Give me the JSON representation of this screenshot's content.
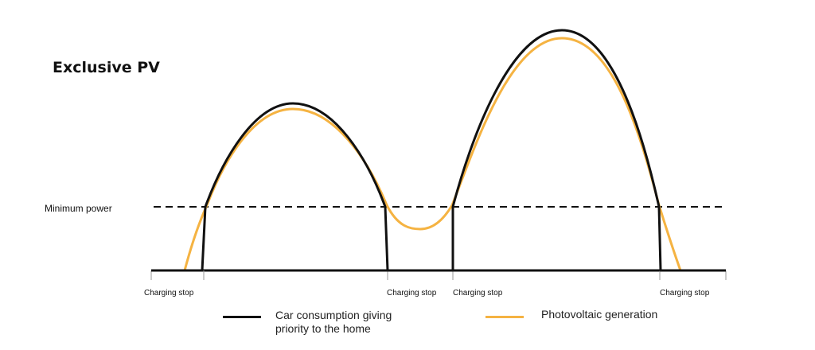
{
  "title": "Exclusive PV",
  "minimum_power_label": "Minimum power",
  "charging_stop_labels": [
    "Charging stop",
    "Charging stop",
    "Charging stop",
    "Charging stop"
  ],
  "legend": {
    "car_line1": "Car consumption giving",
    "car_line2": "priority to the home",
    "pv": "Photovoltaic generation"
  },
  "colors": {
    "car": "#111111",
    "pv": "#f5b342",
    "axis": "#111111"
  }
}
